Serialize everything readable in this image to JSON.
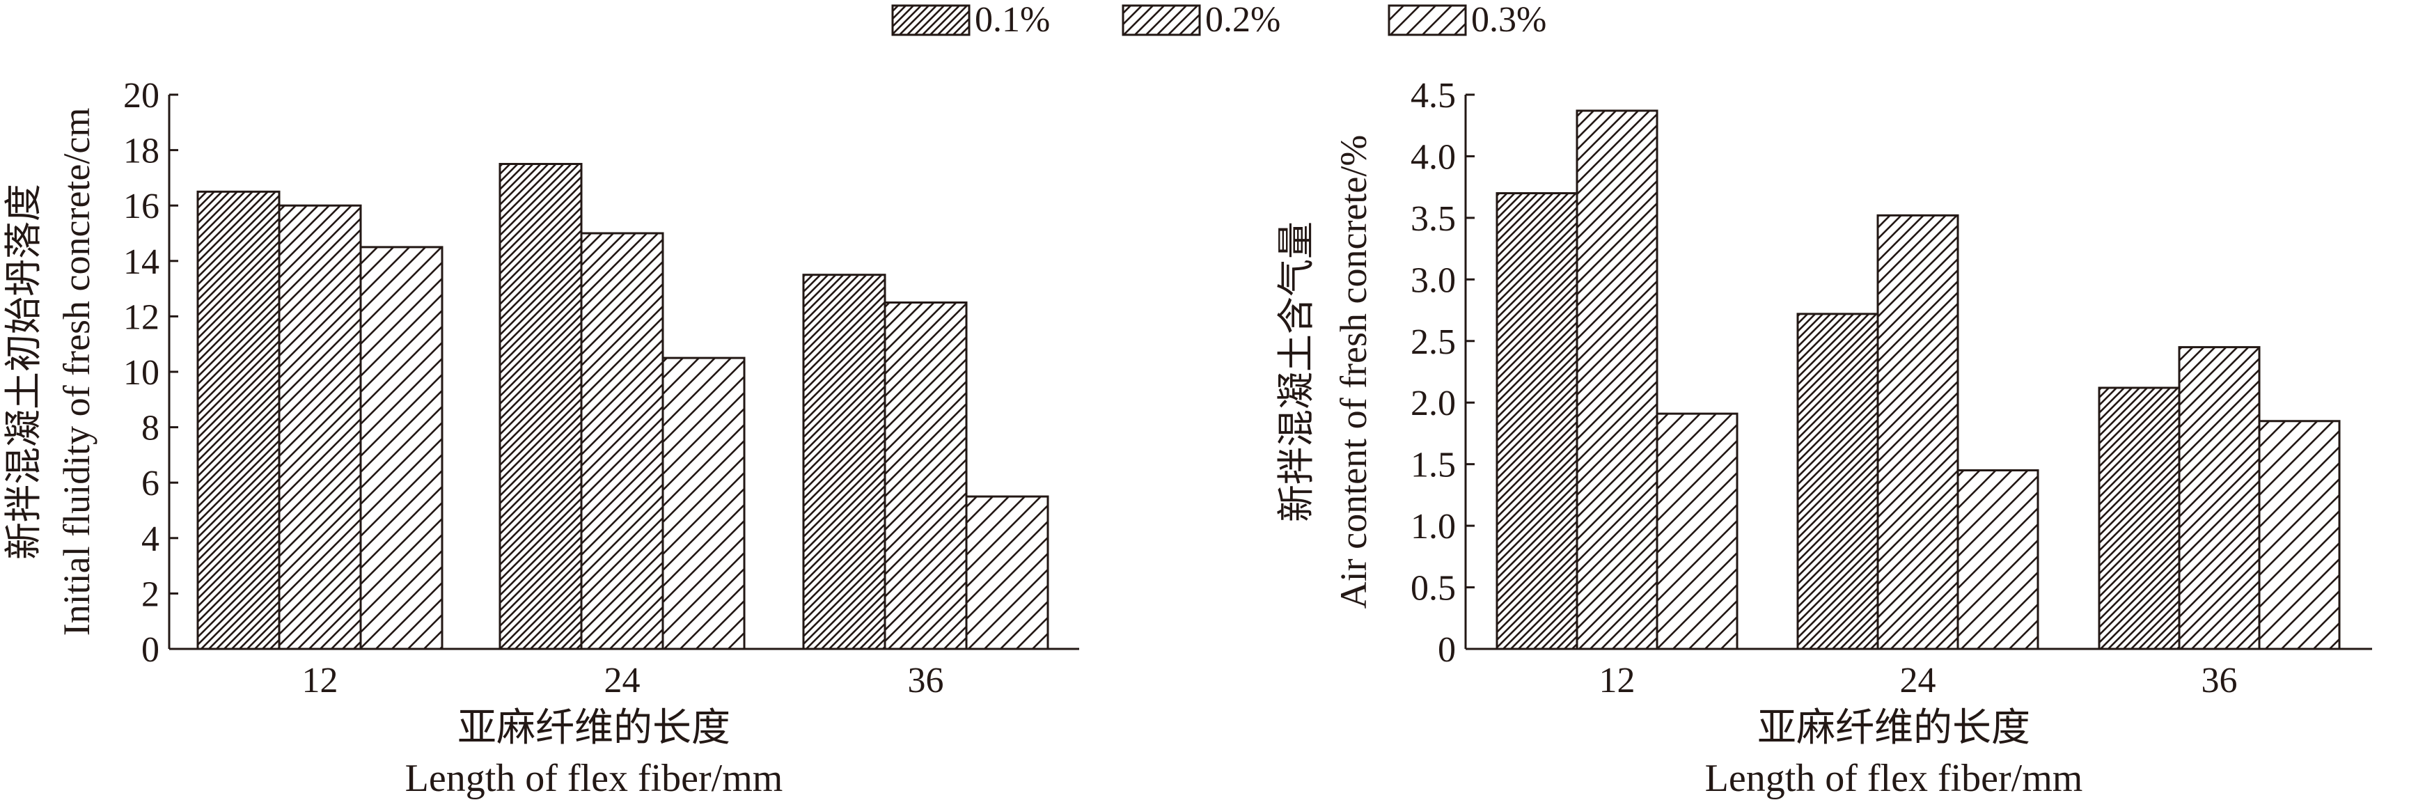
{
  "legend": {
    "items": [
      {
        "label": "0.1%",
        "pattern": "dense"
      },
      {
        "label": "0.2%",
        "pattern": "medium"
      },
      {
        "label": "0.3%",
        "pattern": "sparse"
      }
    ]
  },
  "colors": {
    "ink": "#231815",
    "background": "#ffffff"
  },
  "chart_data": [
    {
      "type": "bar",
      "categories": [
        "12",
        "24",
        "36"
      ],
      "series": [
        {
          "name": "0.1%",
          "values": [
            16.5,
            17.5,
            13.5
          ]
        },
        {
          "name": "0.2%",
          "values": [
            16.0,
            15.0,
            12.5
          ]
        },
        {
          "name": "0.3%",
          "values": [
            14.5,
            10.5,
            5.5
          ]
        }
      ],
      "ylim": [
        0,
        20
      ],
      "yticks": [
        "0",
        "2",
        "4",
        "6",
        "8",
        "10",
        "12",
        "14",
        "16",
        "18",
        "20"
      ],
      "xlabel_cn": "亚麻纤维的长度",
      "xlabel_en": "Length of flex fiber/mm",
      "ylabel_cn": "新拌混凝土初始坍落度",
      "ylabel_en": "Initial fluidity of fresh concrete/cm",
      "grid": false
    },
    {
      "type": "bar",
      "categories": [
        "12",
        "24",
        "36"
      ],
      "series": [
        {
          "name": "0.1%",
          "values": [
            3.7,
            2.72,
            2.12
          ]
        },
        {
          "name": "0.2%",
          "values": [
            4.37,
            3.52,
            2.45
          ]
        },
        {
          "name": "0.3%",
          "values": [
            1.91,
            1.45,
            1.85
          ]
        }
      ],
      "ylim": [
        0,
        4.5
      ],
      "yticks": [
        "0",
        "0.5",
        "1.0",
        "1.5",
        "2.0",
        "2.5",
        "3.0",
        "3.5",
        "4.0",
        "4.5"
      ],
      "xlabel_cn": "亚麻纤维的长度",
      "xlabel_en": "Length of flex fiber/mm",
      "ylabel_cn": "新拌混凝土含气量",
      "ylabel_en": "Air content of fresh concrete/%",
      "grid": false
    }
  ]
}
